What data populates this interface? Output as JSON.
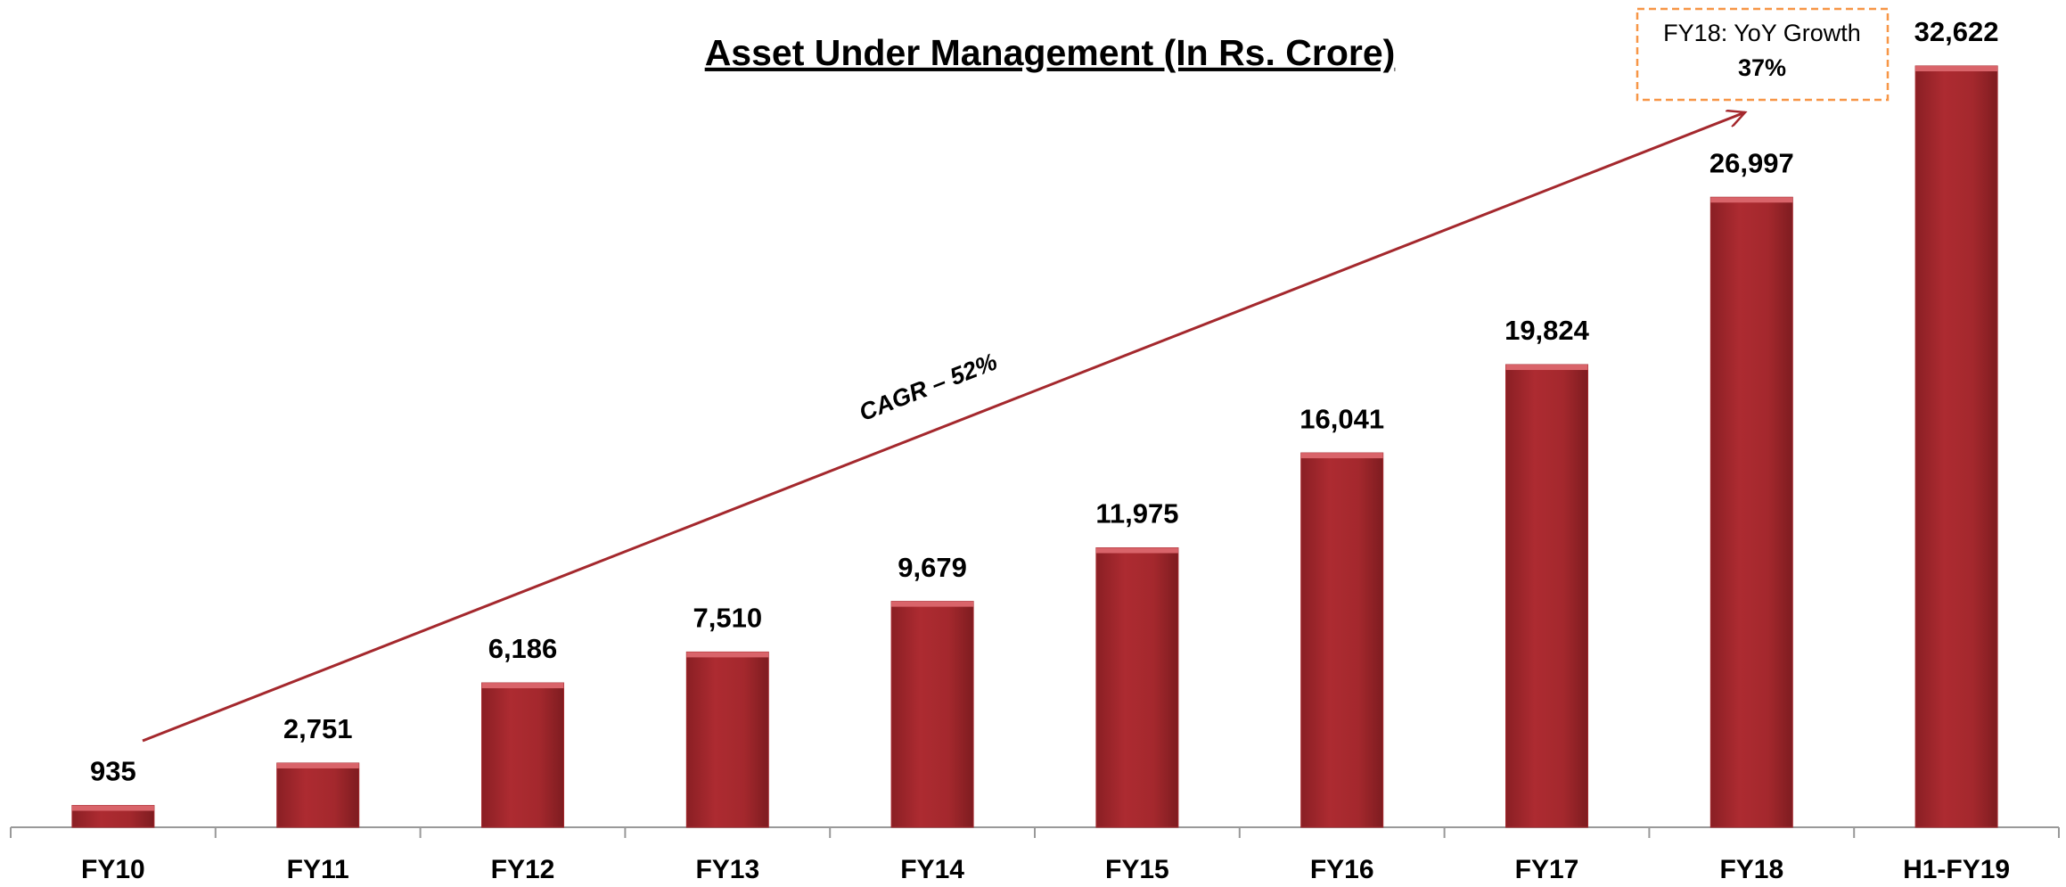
{
  "chart_data": {
    "type": "bar",
    "title": "Asset Under Management (In Rs. Crore)",
    "categories": [
      "FY10",
      "FY11",
      "FY12",
      "FY13",
      "FY14",
      "FY15",
      "FY16",
      "FY17",
      "FY18",
      "H1-FY19"
    ],
    "values": [
      935,
      2751,
      6186,
      7510,
      9679,
      11975,
      16041,
      19824,
      26997,
      32622
    ],
    "value_labels": [
      "935",
      "2,751",
      "6,186",
      "7,510",
      "9,679",
      "11,975",
      "16,041",
      "19,824",
      "26,997",
      "32,622"
    ],
    "color": "#a4282d",
    "annotations": {
      "cagr": "CAGR – 52%",
      "growth_box": {
        "title": "FY18: YoY Growth",
        "value": "37%"
      }
    }
  }
}
